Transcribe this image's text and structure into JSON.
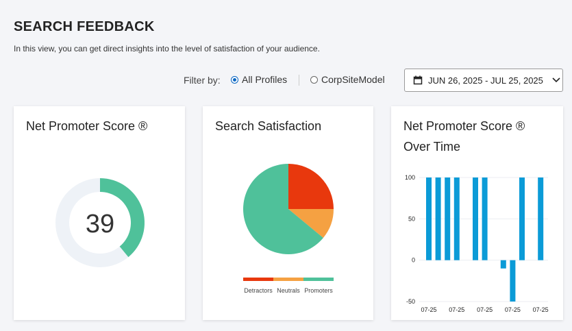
{
  "header": {
    "title": "SEARCH FEEDBACK",
    "subtitle": "In this view, you can get direct insights into the level of satisfaction of your audience."
  },
  "filter": {
    "label": "Filter by:",
    "options": [
      {
        "label": "All Profiles",
        "selected": true
      },
      {
        "label": "CorpSiteModel",
        "selected": false
      }
    ],
    "date_range": "JUN 26, 2025 - JUL 25, 2025"
  },
  "chart_data": [
    {
      "type": "gauge",
      "title": "Net Promoter Score ®",
      "value": 39,
      "ylim": [
        0,
        100
      ],
      "color": "#4fc19a"
    },
    {
      "type": "pie",
      "title": "Search Satisfaction",
      "categories": [
        "Detractors",
        "Neutrals",
        "Promoters"
      ],
      "values": [
        25,
        11,
        64
      ],
      "colors": [
        "#e8380d",
        "#f5a142",
        "#4fc19a"
      ]
    },
    {
      "type": "bar",
      "title": "Net Promoter Score ® Over Time",
      "categories": [
        "07-25",
        null,
        null,
        "07-25",
        null,
        null,
        "07-25",
        null,
        null,
        "07-25",
        null,
        null,
        "07-25"
      ],
      "values": [
        100,
        100,
        100,
        100,
        null,
        100,
        100,
        null,
        -10,
        -50,
        100,
        null,
        100
      ],
      "color": "#0b9bd7",
      "ylim": [
        -50,
        100
      ],
      "yticks": [
        -50,
        0,
        50,
        100
      ],
      "grid": true
    }
  ]
}
